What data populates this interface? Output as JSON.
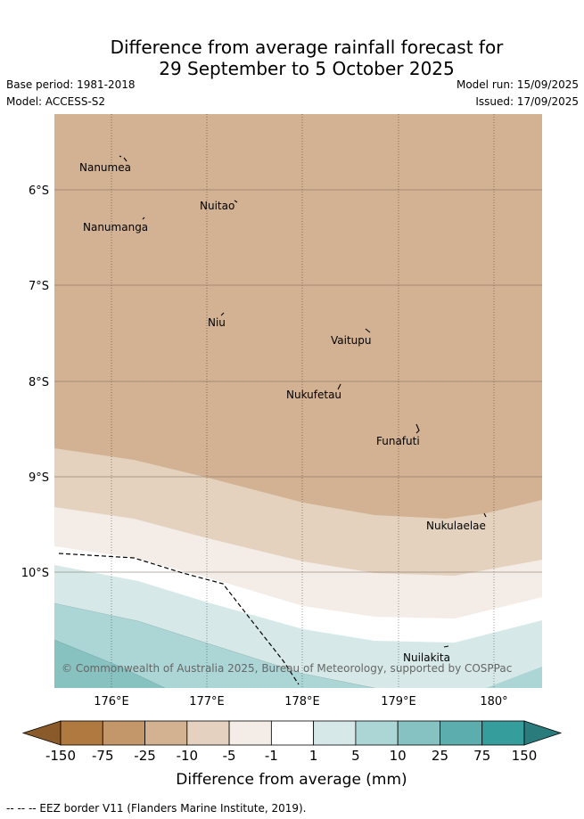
{
  "title": {
    "line1": "Difference from average rainfall forecast for",
    "line2": "29 September to 5 October 2025"
  },
  "info": {
    "base_period": "Base period: 1981-2018",
    "model": "Model: ACCESS-S2",
    "model_run": "Model run: 15/09/2025",
    "issued": "Issued: 17/09/2025"
  },
  "axes": {
    "lat_labels": [
      "6°S",
      "7°S",
      "8°S",
      "9°S",
      "10°S"
    ],
    "lon_labels": [
      "176°E",
      "177°E",
      "178°E",
      "179°E",
      "180°"
    ]
  },
  "places": [
    "Nanumea",
    "Nuitao",
    "Nanumanga",
    "Niu",
    "Vaitupu",
    "Nukufetau",
    "Funafuti",
    "Nukulaelae",
    "Nuilakita"
  ],
  "copyright": "© Commonwealth of Australia 2025, Bureau of Meteorology, supported by COSPPac",
  "legend": {
    "title": "Difference from average (mm)",
    "ticks": [
      "-150",
      "-75",
      "-25",
      "-10",
      "-5",
      "-1",
      "1",
      "5",
      "10",
      "25",
      "75",
      "150"
    ],
    "colors": [
      "#8a5a2b",
      "#b07940",
      "#c4976a",
      "#d3b291",
      "#e4d1bf",
      "#f4ece7",
      "#ffffff",
      "#d6e9e8",
      "#acd6d6",
      "#86c2c1",
      "#5cadad",
      "#359e9d",
      "#2a7b7b"
    ]
  },
  "footnote": "-- -- -- EEZ border V11 (Flanders Marine Institute, 2019)."
}
